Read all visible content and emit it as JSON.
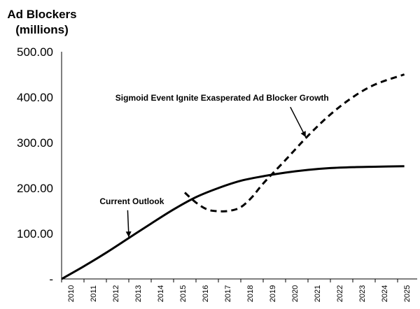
{
  "chart_data": {
    "type": "line",
    "ylabel_lines": [
      "Ad Blockers",
      "(millions)"
    ],
    "ylim": [
      0,
      500
    ],
    "y_ticks": [
      "-",
      "100.00",
      "200.00",
      "300.00",
      "400.00",
      "500.00"
    ],
    "x_ticks": [
      "2010",
      "2011",
      "2012",
      "2013",
      "2014",
      "2015",
      "2016",
      "2017",
      "2018",
      "2019",
      "2020",
      "2021",
      "2022",
      "2023",
      "2024",
      "2025"
    ],
    "grid": false,
    "legend": "none",
    "series": [
      {
        "name": "Current Outlook",
        "style": "solid",
        "color": "#000000",
        "x": [
          2010,
          2011,
          2012,
          2013,
          2014,
          2015,
          2016,
          2017,
          2018,
          2019,
          2020,
          2021,
          2022,
          2023,
          2024,
          2025.3
        ],
        "y": [
          0,
          28,
          58,
          90,
          122,
          153,
          180,
          200,
          216,
          226,
          234,
          240,
          244,
          246,
          247,
          248
        ]
      },
      {
        "name": "Sigmoid Event Ignite Exasperated Ad Blocker Growth",
        "style": "dashed",
        "color": "#000000",
        "x": [
          2015.5,
          2016,
          2016.5,
          2017,
          2017.5,
          2018,
          2018.5,
          2019,
          2020,
          2021,
          2022,
          2023,
          2024,
          2025.3
        ],
        "y": [
          190,
          168,
          153,
          149,
          150,
          158,
          180,
          210,
          262,
          315,
          362,
          400,
          428,
          450
        ]
      }
    ],
    "annotations": [
      {
        "text": "Current Outlook",
        "x": 2011.7,
        "y": 165,
        "arrow_to": [
          2013.0,
          92
        ]
      },
      {
        "text": "Sigmoid Event Ignite Exasperated Ad Blocker Growth",
        "x": 2012.4,
        "y": 392,
        "arrow_to": [
          2020.9,
          312
        ]
      }
    ]
  }
}
